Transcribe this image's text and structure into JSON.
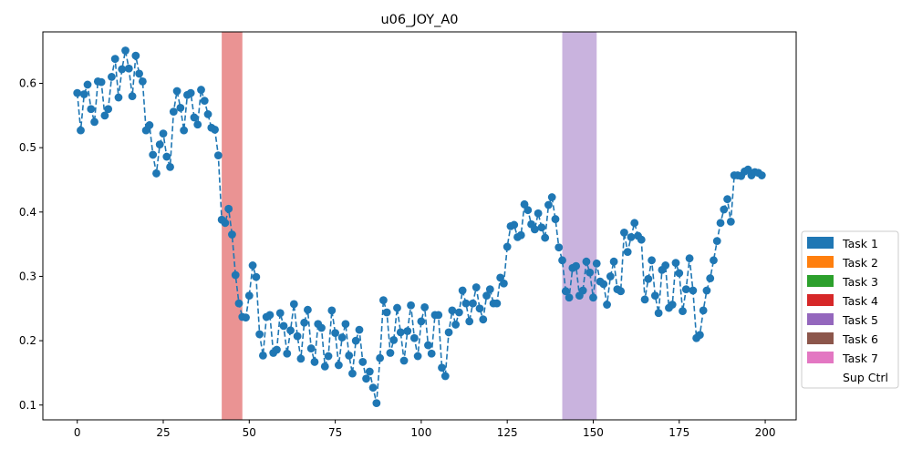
{
  "chart_data": {
    "type": "line",
    "title": "u06_JOY_A0",
    "xlabel": "",
    "ylabel": "",
    "xlim": [
      -10,
      209
    ],
    "ylim": [
      0.077,
      0.68
    ],
    "x_ticks": [
      0,
      25,
      50,
      75,
      100,
      125,
      150,
      175,
      200
    ],
    "y_ticks": [
      0.1,
      0.2,
      0.3,
      0.4,
      0.5,
      0.6
    ],
    "grid": false,
    "legend_position": "right",
    "legend": [
      {
        "label": "Task 1",
        "color": "#1f77b4"
      },
      {
        "label": "Task 2",
        "color": "#ff7f0e"
      },
      {
        "label": "Task 3",
        "color": "#2ca02c"
      },
      {
        "label": "Task 4",
        "color": "#d62728"
      },
      {
        "label": "Task 5",
        "color": "#9467bd"
      },
      {
        "label": "Task 6",
        "color": "#8c564b"
      },
      {
        "label": "Task 7",
        "color": "#e377c2"
      },
      {
        "label": "Sup Ctrl",
        "color": "#ffffff"
      }
    ],
    "spans": [
      {
        "x0": 42,
        "x1": 48,
        "color": "#d62728",
        "opacity": 0.5
      },
      {
        "x0": 141,
        "x1": 151,
        "color": "#9467bd",
        "opacity": 0.5
      }
    ],
    "series": [
      {
        "color": "#1f77b4",
        "style": "dashed-with-markers",
        "x0": 0,
        "dx": 1,
        "values": [
          0.585,
          0.527,
          0.583,
          0.598,
          0.56,
          0.54,
          0.603,
          0.602,
          0.55,
          0.56,
          0.61,
          0.638,
          0.578,
          0.622,
          0.651,
          0.623,
          0.58,
          0.643,
          0.615,
          0.603,
          0.527,
          0.535,
          0.489,
          0.46,
          0.505,
          0.522,
          0.486,
          0.47,
          0.556,
          0.588,
          0.562,
          0.527,
          0.582,
          0.585,
          0.547,
          0.536,
          0.59,
          0.573,
          0.552,
          0.531,
          0.528,
          0.488,
          0.388,
          0.383,
          0.405,
          0.365,
          0.302,
          0.258,
          0.237,
          0.236,
          0.27,
          0.317,
          0.299,
          0.21,
          0.177,
          0.237,
          0.24,
          0.181,
          0.186,
          0.243,
          0.223,
          0.18,
          0.216,
          0.257,
          0.207,
          0.172,
          0.228,
          0.248,
          0.188,
          0.167,
          0.226,
          0.22,
          0.16,
          0.176,
          0.247,
          0.212,
          0.162,
          0.205,
          0.226,
          0.177,
          0.149,
          0.2,
          0.217,
          0.167,
          0.141,
          0.152,
          0.127,
          0.103,
          0.173,
          0.263,
          0.244,
          0.181,
          0.201,
          0.251,
          0.213,
          0.169,
          0.215,
          0.255,
          0.204,
          0.176,
          0.23,
          0.252,
          0.193,
          0.18,
          0.24,
          0.24,
          0.158,
          0.145,
          0.213,
          0.247,
          0.225,
          0.244,
          0.278,
          0.258,
          0.23,
          0.258,
          0.283,
          0.25,
          0.233,
          0.27,
          0.28,
          0.258,
          0.258,
          0.298,
          0.289,
          0.346,
          0.378,
          0.38,
          0.361,
          0.364,
          0.412,
          0.403,
          0.381,
          0.373,
          0.398,
          0.376,
          0.36,
          0.411,
          0.423,
          0.389,
          0.345,
          0.325,
          0.277,
          0.267,
          0.313,
          0.316,
          0.27,
          0.278,
          0.323,
          0.306,
          0.267,
          0.32,
          0.292,
          0.288,
          0.256,
          0.3,
          0.323,
          0.28,
          0.277,
          0.368,
          0.338,
          0.361,
          0.383,
          0.363,
          0.357,
          0.264,
          0.296,
          0.325,
          0.27,
          0.243,
          0.31,
          0.317,
          0.251,
          0.256,
          0.321,
          0.305,
          0.246,
          0.28,
          0.328,
          0.278,
          0.204,
          0.209,
          0.247,
          0.278,
          0.297,
          0.325,
          0.355,
          0.383,
          0.404,
          0.42,
          0.385,
          0.457,
          0.457,
          0.456,
          0.463,
          0.466,
          0.457,
          0.462,
          0.461,
          0.457
        ]
      }
    ]
  }
}
